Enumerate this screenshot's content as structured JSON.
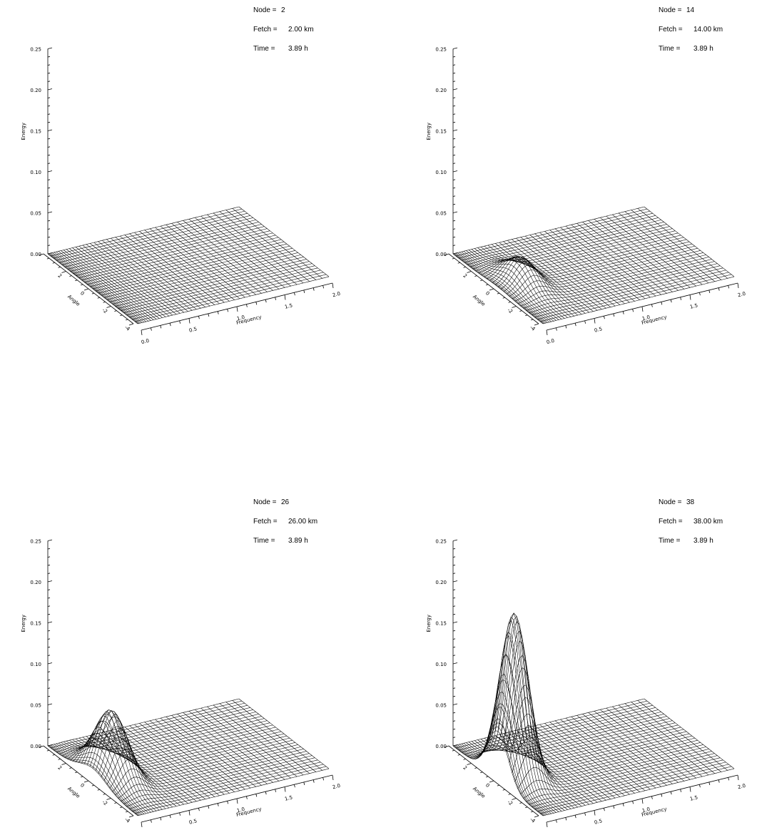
{
  "chart_data": [
    {
      "type": "surface",
      "annotations": [
        {
          "label": "Node =",
          "value": "2"
        },
        {
          "label": "Fetch =",
          "value": "2.00 km"
        },
        {
          "label": "Time =",
          "value": "3.89 h"
        }
      ],
      "zlabel": "Energy",
      "xlabel": "Frequency",
      "ylabel": "Angle",
      "zlim": [
        0,
        0.25
      ],
      "xlim": [
        0,
        2.0
      ],
      "ylim": [
        -4,
        4
      ],
      "z_ticks": [
        "0.00",
        "0.05",
        "0.10",
        "0.15",
        "0.20",
        "0.25"
      ],
      "x_ticks": [
        "0.0",
        "0.5",
        "1.0",
        "1.5",
        "2.0"
      ],
      "y_ticks": [
        "-4",
        "-2",
        "0",
        "2"
      ],
      "peak_energy": 0.0,
      "peak_frequency": 0.25,
      "peak_angle": 0,
      "angular_width": 1.0
    },
    {
      "type": "surface",
      "annotations": [
        {
          "label": "Node =",
          "value": "14"
        },
        {
          "label": "Fetch =",
          "value": "14.00 km"
        },
        {
          "label": "Time =",
          "value": "3.89 h"
        }
      ],
      "zlabel": "Energy",
      "xlabel": "Frequency",
      "ylabel": "Angle",
      "zlim": [
        0,
        0.25
      ],
      "xlim": [
        0,
        2.0
      ],
      "ylim": [
        -4,
        4
      ],
      "z_ticks": [
        "0.00",
        "0.05",
        "0.10",
        "0.15",
        "0.20",
        "0.25"
      ],
      "x_ticks": [
        "0.0",
        "0.5",
        "1.0",
        "1.5",
        "2.0"
      ],
      "y_ticks": [
        "-4",
        "-2",
        "0",
        "2"
      ],
      "peak_energy": 0.03,
      "peak_frequency": 0.25,
      "peak_angle": 0,
      "angular_width": 1.1
    },
    {
      "type": "surface",
      "annotations": [
        {
          "label": "Node =",
          "value": "26"
        },
        {
          "label": "Fetch =",
          "value": "26.00 km"
        },
        {
          "label": "Time =",
          "value": "3.89 h"
        }
      ],
      "zlabel": "Energy",
      "xlabel": "Frequency",
      "ylabel": "Angle",
      "zlim": [
        0,
        0.25
      ],
      "xlim": [
        0,
        2.0
      ],
      "ylim": [
        -4,
        4
      ],
      "z_ticks": [
        "0.00",
        "0.05",
        "0.10",
        "0.15",
        "0.20",
        "0.25"
      ],
      "x_ticks": [
        "0.0",
        "0.5",
        "1.0",
        "1.5",
        "2.0"
      ],
      "y_ticks": [
        "-4",
        "-2",
        "0",
        "2"
      ],
      "peak_energy": 0.08,
      "peak_frequency": 0.2,
      "peak_angle": 0,
      "angular_width": 1.2
    },
    {
      "type": "surface",
      "annotations": [
        {
          "label": "Node =",
          "value": "38"
        },
        {
          "label": "Fetch =",
          "value": "38.00 km"
        },
        {
          "label": "Time =",
          "value": "3.89 h"
        }
      ],
      "zlabel": "Energy",
      "xlabel": "Frequency",
      "ylabel": "Angle",
      "zlim": [
        0,
        0.25
      ],
      "xlim": [
        0,
        2.0
      ],
      "ylim": [
        -4,
        4
      ],
      "z_ticks": [
        "0.00",
        "0.05",
        "0.10",
        "0.15",
        "0.20",
        "0.25"
      ],
      "x_ticks": [
        "0.0",
        "0.5",
        "1.0",
        "1.5",
        "2.0"
      ],
      "y_ticks": [
        "-4",
        "-2",
        "0",
        "2"
      ],
      "peak_energy": 0.2,
      "peak_frequency": 0.17,
      "peak_angle": 0,
      "angular_width": 0.9
    }
  ],
  "colors": {
    "ink": "#000000",
    "background": "#ffffff"
  }
}
